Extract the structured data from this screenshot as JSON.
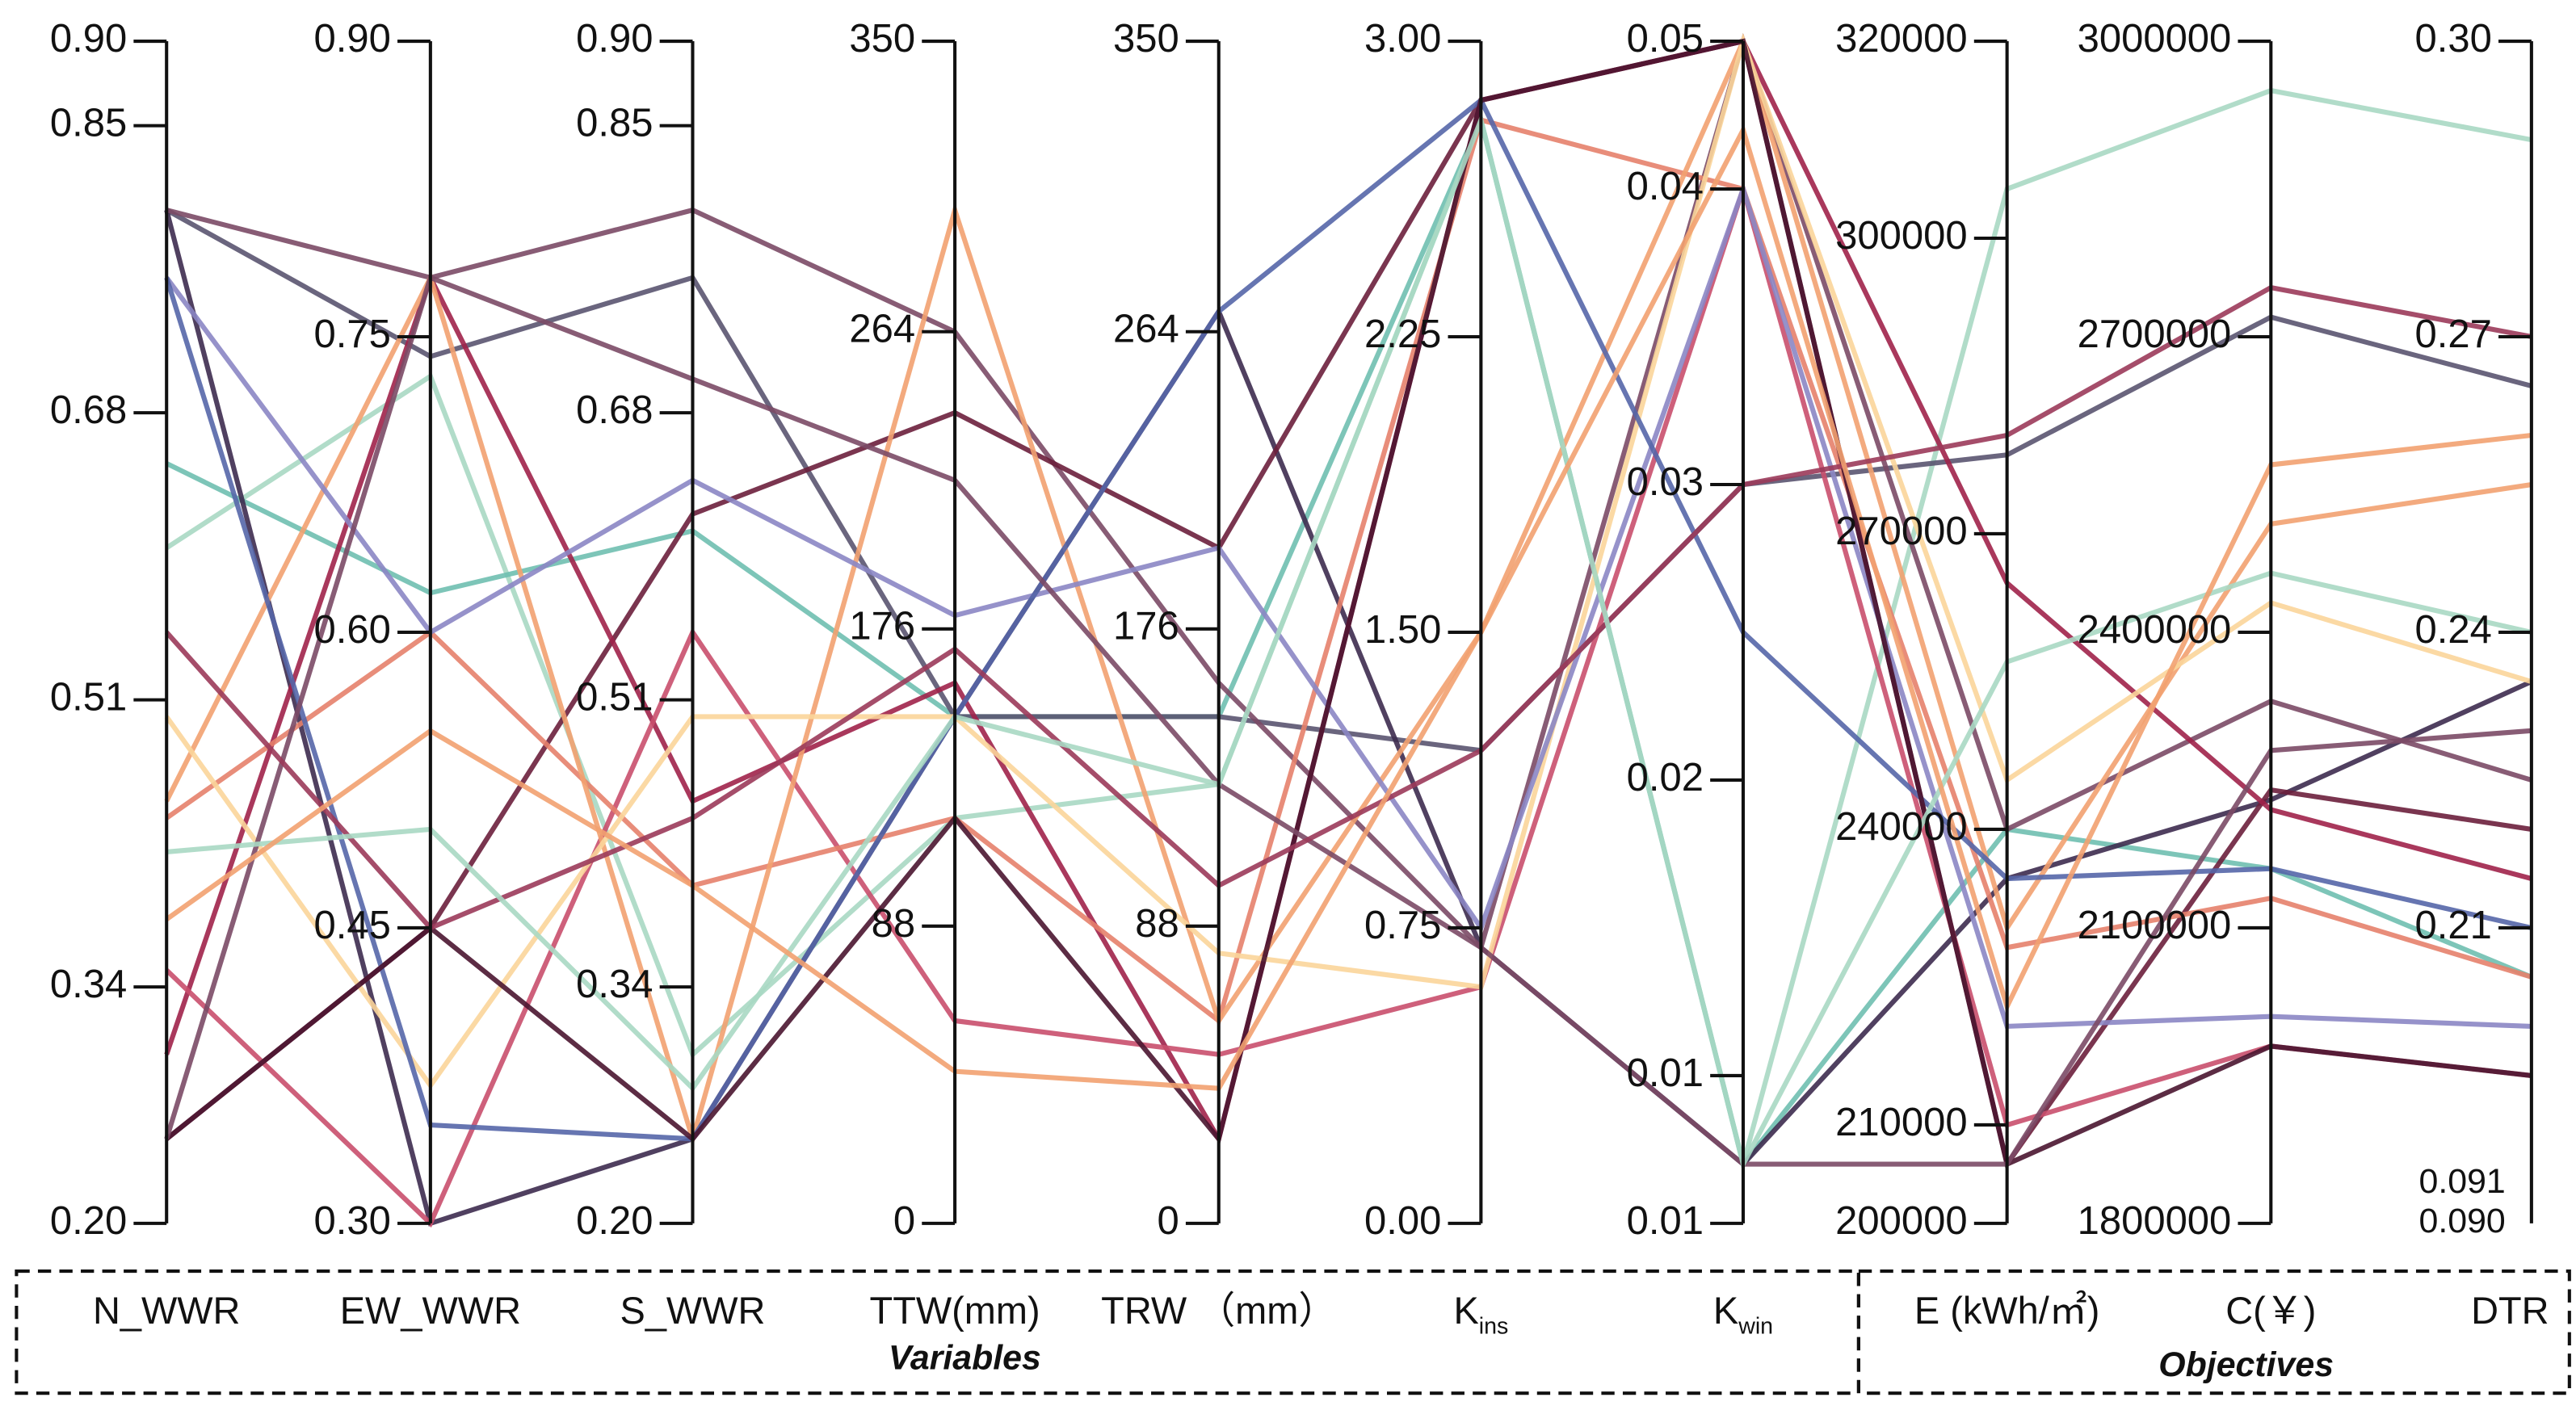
{
  "chart_data": {
    "type": "parallel",
    "axes": [
      {
        "name": "N_WWR",
        "lim": [
          0.2,
          0.9
        ],
        "ticks": [
          {
            "value": 0.2,
            "label": "0.20"
          },
          0.34,
          0.51,
          0.68,
          0.85,
          {
            "value": 0.9,
            "label": "0.90"
          }
        ]
      },
      {
        "name": "EW_WWR",
        "lim": [
          0.3,
          0.9
        ],
        "ticks": [
          {
            "value": 0.3,
            "label": "0.30"
          },
          0.45,
          {
            "value": 0.6,
            "label": "0.60"
          },
          0.75,
          {
            "value": 0.9,
            "label": "0.90"
          }
        ]
      },
      {
        "name": "S_WWR",
        "lim": [
          0.2,
          0.9
        ],
        "ticks": [
          {
            "value": 0.2,
            "label": "0.20"
          },
          0.34,
          0.51,
          0.68,
          0.85,
          {
            "value": 0.9,
            "label": "0.90"
          }
        ]
      },
      {
        "name": "TTW(mm)",
        "lim": [
          0,
          350
        ],
        "ticks": [
          0,
          88,
          176,
          264,
          350
        ]
      },
      {
        "name": "TRW （mm）",
        "lim": [
          0,
          350
        ],
        "ticks": [
          0,
          88,
          176,
          264,
          350
        ]
      },
      {
        "name": "K",
        "sub": "ins",
        "lim": [
          0,
          3
        ],
        "ticks": [
          {
            "value": 0,
            "label": "0.00"
          },
          0.75,
          {
            "value": 1.5,
            "label": "1.50"
          },
          2.25,
          {
            "value": 3,
            "label": "3.00"
          }
        ]
      },
      {
        "name": "K",
        "sub": "win",
        "lim": [
          0.005,
          0.045
        ],
        "ticks": [
          {
            "value": 0.005,
            "label": "0.01"
          },
          0.01,
          {
            "value": 0.02,
            "label": "0.02"
          },
          0.03,
          0.04,
          {
            "value": 0.045,
            "label": "0.05"
          }
        ]
      },
      {
        "name": "E (kWh/㎡)",
        "lim": [
          200000,
          320000
        ],
        "ticks": [
          200000,
          210000,
          240000,
          270000,
          300000,
          320000
        ]
      },
      {
        "name": "C(￥)",
        "lim": [
          1800000,
          3000000
        ],
        "ticks": [
          1800000,
          2100000,
          2400000,
          2700000,
          3000000
        ]
      },
      {
        "name": "DTR",
        "lim": [
          0.18,
          0.3
        ],
        "ticks": [
          0.21,
          0.24,
          0.27,
          {
            "value": 0.3,
            "label": "0.30"
          }
        ]
      }
    ],
    "annotations": [
      "0.091",
      "0.090"
    ],
    "groups": [
      "Variables",
      "Objectives"
    ],
    "series": [
      {
        "color": "#a8d8c3",
        "values": [
          0.6,
          0.73,
          0.3,
          120,
          130,
          2.8,
          0.007,
          305000,
          2950000,
          0.29
        ]
      },
      {
        "color": "#6fbfb0",
        "values": [
          0.65,
          0.62,
          0.61,
          150,
          150,
          2.8,
          0.007,
          240000,
          2160000,
          0.205
        ]
      },
      {
        "color": "#5a5470",
        "values": [
          0.8,
          0.74,
          0.76,
          150,
          150,
          1.2,
          0.03,
          278000,
          2720000,
          0.265
        ]
      },
      {
        "color": "#3d2b4f",
        "values": [
          0.8,
          0.3,
          0.25,
          150,
          270,
          0.7,
          0.007,
          235000,
          2230000,
          0.235
        ]
      },
      {
        "color": "#7b4a66",
        "values": [
          0.8,
          0.78,
          0.8,
          264,
          160,
          0.7,
          0.045,
          240000,
          2330000,
          0.225
        ]
      },
      {
        "color": "#6b1f3c",
        "values": [
          0.25,
          0.45,
          0.62,
          240,
          200,
          2.85,
          0.045,
          206000,
          2240000,
          0.22
        ]
      },
      {
        "color": "#a0224a",
        "values": [
          0.3,
          0.78,
          0.45,
          160,
          25,
          2.85,
          0.045,
          265000,
          2220000,
          0.215
        ]
      },
      {
        "color": "#c94f6d",
        "values": [
          0.35,
          0.3,
          0.55,
          60,
          50,
          0.6,
          0.04,
          210000,
          1980000,
          0.195
        ]
      },
      {
        "color": "#e6816b",
        "values": [
          0.44,
          0.6,
          0.4,
          120,
          60,
          2.8,
          0.04,
          228000,
          2130000,
          0.205
        ]
      },
      {
        "color": "#f2a170",
        "values": [
          0.45,
          0.78,
          0.25,
          300,
          60,
          1.5,
          0.045,
          230000,
          2510000,
          0.255
        ]
      },
      {
        "color": "#fbd59a",
        "values": [
          0.5,
          0.37,
          0.5,
          150,
          80,
          0.6,
          0.045,
          245000,
          2430000,
          0.235
        ]
      },
      {
        "color": "#8b86c4",
        "values": [
          0.76,
          0.6,
          0.64,
          180,
          200,
          0.75,
          0.04,
          220000,
          2010000,
          0.2
        ]
      },
      {
        "color": "#5566a8",
        "values": [
          0.76,
          0.35,
          0.25,
          150,
          270,
          2.85,
          0.025,
          235000,
          2160000,
          0.21
        ]
      },
      {
        "color": "#4a1530",
        "values": [
          0.25,
          0.45,
          0.25,
          120,
          25,
          2.85,
          0.045,
          206000,
          1980000,
          0.195
        ]
      },
      {
        "color": "#7b4a66",
        "values": [
          0.25,
          0.78,
          0.7,
          220,
          130,
          0.7,
          0.007,
          206000,
          2280000,
          0.23
        ]
      },
      {
        "color": "#9b3a5a",
        "values": [
          0.55,
          0.45,
          0.44,
          170,
          100,
          1.2,
          0.03,
          280000,
          2750000,
          0.27
        ]
      },
      {
        "color": "#a8d8c3",
        "values": [
          0.42,
          0.5,
          0.28,
          150,
          130,
          2.8,
          0.007,
          257000,
          2460000,
          0.24
        ]
      },
      {
        "color": "#f2a170",
        "values": [
          0.38,
          0.55,
          0.4,
          45,
          40,
          1.5,
          0.042,
          222000,
          2570000,
          0.26
        ]
      }
    ]
  }
}
